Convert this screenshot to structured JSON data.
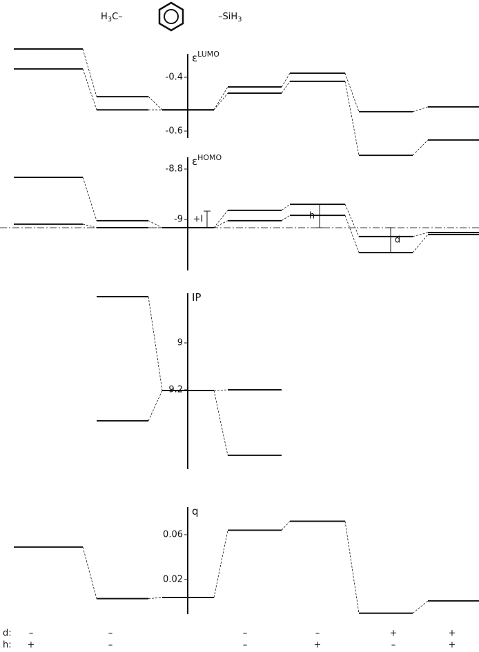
{
  "header": {
    "left": [
      "H",
      "3",
      "C–"
    ],
    "right": [
      "–SiH",
      "3"
    ]
  },
  "chart_data": [
    {
      "type": "level",
      "y_label": "ε",
      "y_label_sup": "LUMO",
      "ylim": [
        -0.72,
        -0.26
      ],
      "yticks": [
        -0.4,
        -0.6
      ],
      "series": [
        {
          "values": [
            -0.295,
            -0.472,
            -0.521,
            -0.436,
            -0.385,
            -0.528,
            -0.51
          ]
        },
        {
          "values": [
            -0.369,
            -0.521,
            -0.521,
            -0.459,
            -0.415,
            -0.69,
            -0.633
          ]
        }
      ]
    },
    {
      "type": "level",
      "y_label": "ε",
      "y_label_sup": "HOMO",
      "ylim": [
        -9.16,
        -8.76
      ],
      "yticks": [
        -8.8,
        -9.0
      ],
      "annotations": [
        "+I",
        "h",
        "d"
      ],
      "series": [
        {
          "values": [
            -8.833,
            -9.005,
            -9.033,
            -8.964,
            -8.94,
            -9.068,
            -9.052
          ]
        },
        {
          "values": [
            -9.019,
            -9.033,
            -9.033,
            -9.005,
            -8.984,
            -9.132,
            -9.06
          ]
        }
      ]
    },
    {
      "type": "level",
      "y_label": "IP",
      "ylim": [
        8.7,
        9.55
      ],
      "yticks": [
        9.0,
        9.2
      ],
      "invert": true,
      "series": [
        {
          "values": [
            null,
            8.803,
            9.203,
            9.2,
            null,
            null,
            null
          ]
        },
        {
          "values": [
            null,
            9.332,
            9.203,
            9.479,
            null,
            null,
            null
          ]
        }
      ]
    },
    {
      "type": "level",
      "y_label": "q",
      "ylim": [
        -0.015,
        0.08
      ],
      "yticks": [
        0.06,
        0.02
      ],
      "series": [
        {
          "values": [
            0.049,
            0.003,
            0.004,
            0.064,
            0.072,
            -0.01,
            0.001
          ]
        }
      ]
    }
  ],
  "columns": {
    "d_label": "d:",
    "h_label": "h:",
    "d": [
      "–",
      "–",
      null,
      "–",
      "–",
      "+",
      "+"
    ],
    "h": [
      "+",
      "–",
      null,
      "–",
      "+",
      "–",
      "+"
    ]
  }
}
